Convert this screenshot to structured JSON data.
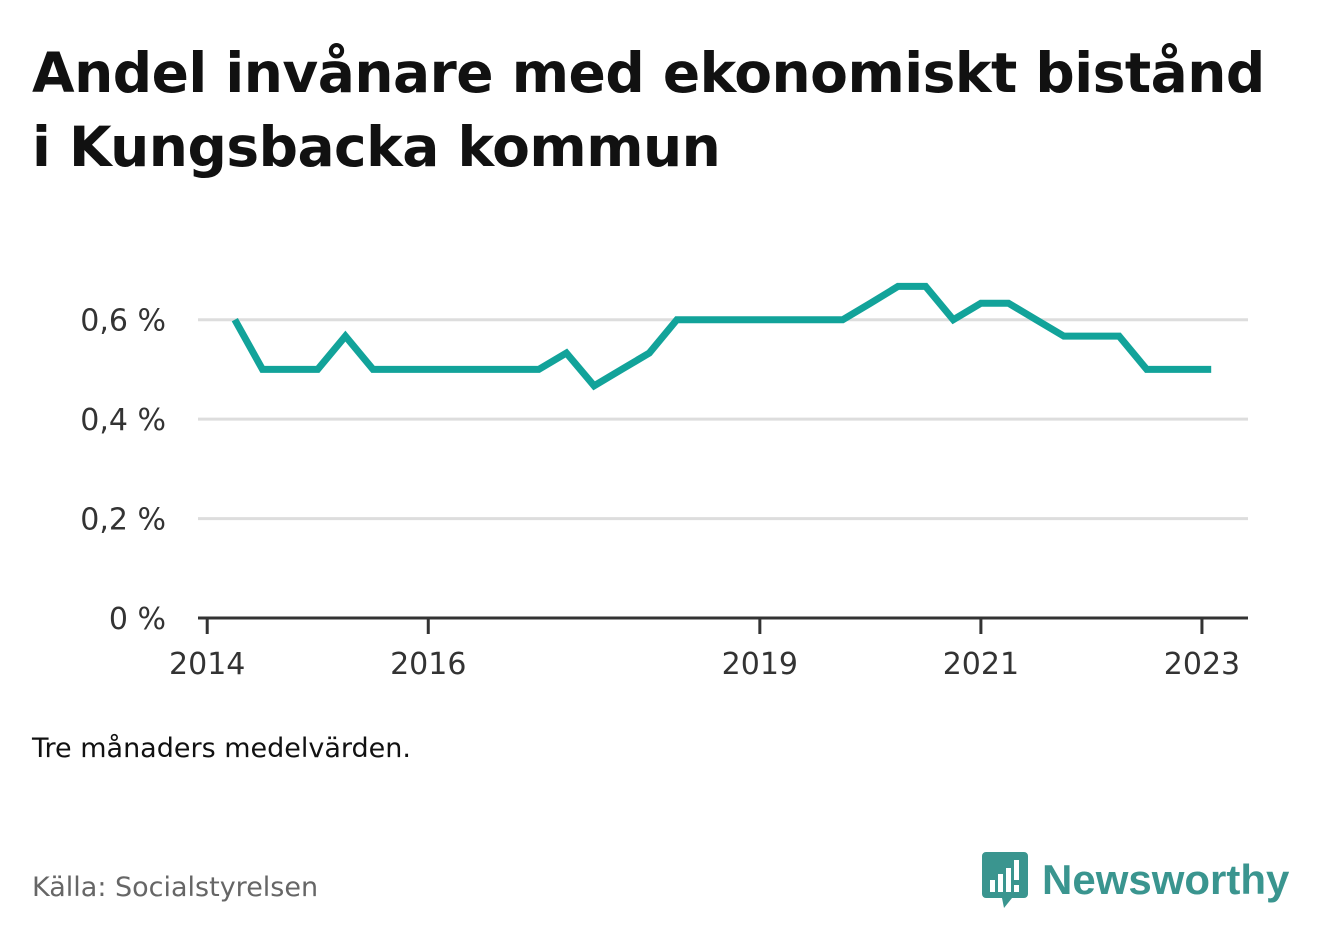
{
  "title": "Andel invånare med ekonomiskt bistånd i Kungsbacka kommun",
  "note": "Tre månaders medelvärden.",
  "source": "Källa: Socialstyrelsen",
  "brand": "Newsworthy",
  "colors": {
    "line": "#12a39a",
    "grid": "#dddddd",
    "axis": "#333333",
    "brand": "#3a958f"
  },
  "chart_data": {
    "type": "line",
    "title": "Andel invånare med ekonomiskt bistånd i Kungsbacka kommun",
    "xlabel": "",
    "ylabel": "",
    "xlim": [
      "2013-12",
      "2023-06"
    ],
    "ylim": [
      0,
      0.7
    ],
    "grid": true,
    "legend": "none",
    "y_ticks": [
      {
        "value": 0,
        "label": "0 %"
      },
      {
        "value": 0.2,
        "label": "0,2 %"
      },
      {
        "value": 0.4,
        "label": "0,4 %"
      },
      {
        "value": 0.6,
        "label": "0,6 %"
      }
    ],
    "x_ticks": [
      {
        "value": "2014-01",
        "label": "2014"
      },
      {
        "value": "2016-01",
        "label": "2016"
      },
      {
        "value": "2019-01",
        "label": "2019"
      },
      {
        "value": "2021-01",
        "label": "2021"
      },
      {
        "value": "2023-01",
        "label": "2023"
      }
    ],
    "series": [
      {
        "x": [
          "2014-04",
          "2014-07",
          "2014-10",
          "2015-01",
          "2015-04",
          "2015-07",
          "2015-10",
          "2016-01",
          "2016-04",
          "2016-07",
          "2016-10",
          "2017-01",
          "2017-04",
          "2017-07",
          "2017-10",
          "2018-01",
          "2018-04",
          "2018-07",
          "2018-10",
          "2019-01",
          "2019-04",
          "2019-07",
          "2019-10",
          "2020-01",
          "2020-04",
          "2020-07",
          "2020-10",
          "2021-01",
          "2021-04",
          "2021-07",
          "2021-10",
          "2022-01",
          "2022-04",
          "2022-07",
          "2022-10",
          "2023-01",
          "2023-02"
        ],
        "values": [
          0.6,
          0.5,
          0.5,
          0.5,
          0.567,
          0.5,
          0.5,
          0.5,
          0.5,
          0.5,
          0.5,
          0.5,
          0.533,
          0.467,
          0.5,
          0.533,
          0.6,
          0.6,
          0.6,
          0.6,
          0.6,
          0.6,
          0.6,
          0.633,
          0.667,
          0.667,
          0.6,
          0.633,
          0.633,
          0.6,
          0.567,
          0.567,
          0.567,
          0.5,
          0.5,
          0.5,
          0.5
        ]
      }
    ]
  }
}
